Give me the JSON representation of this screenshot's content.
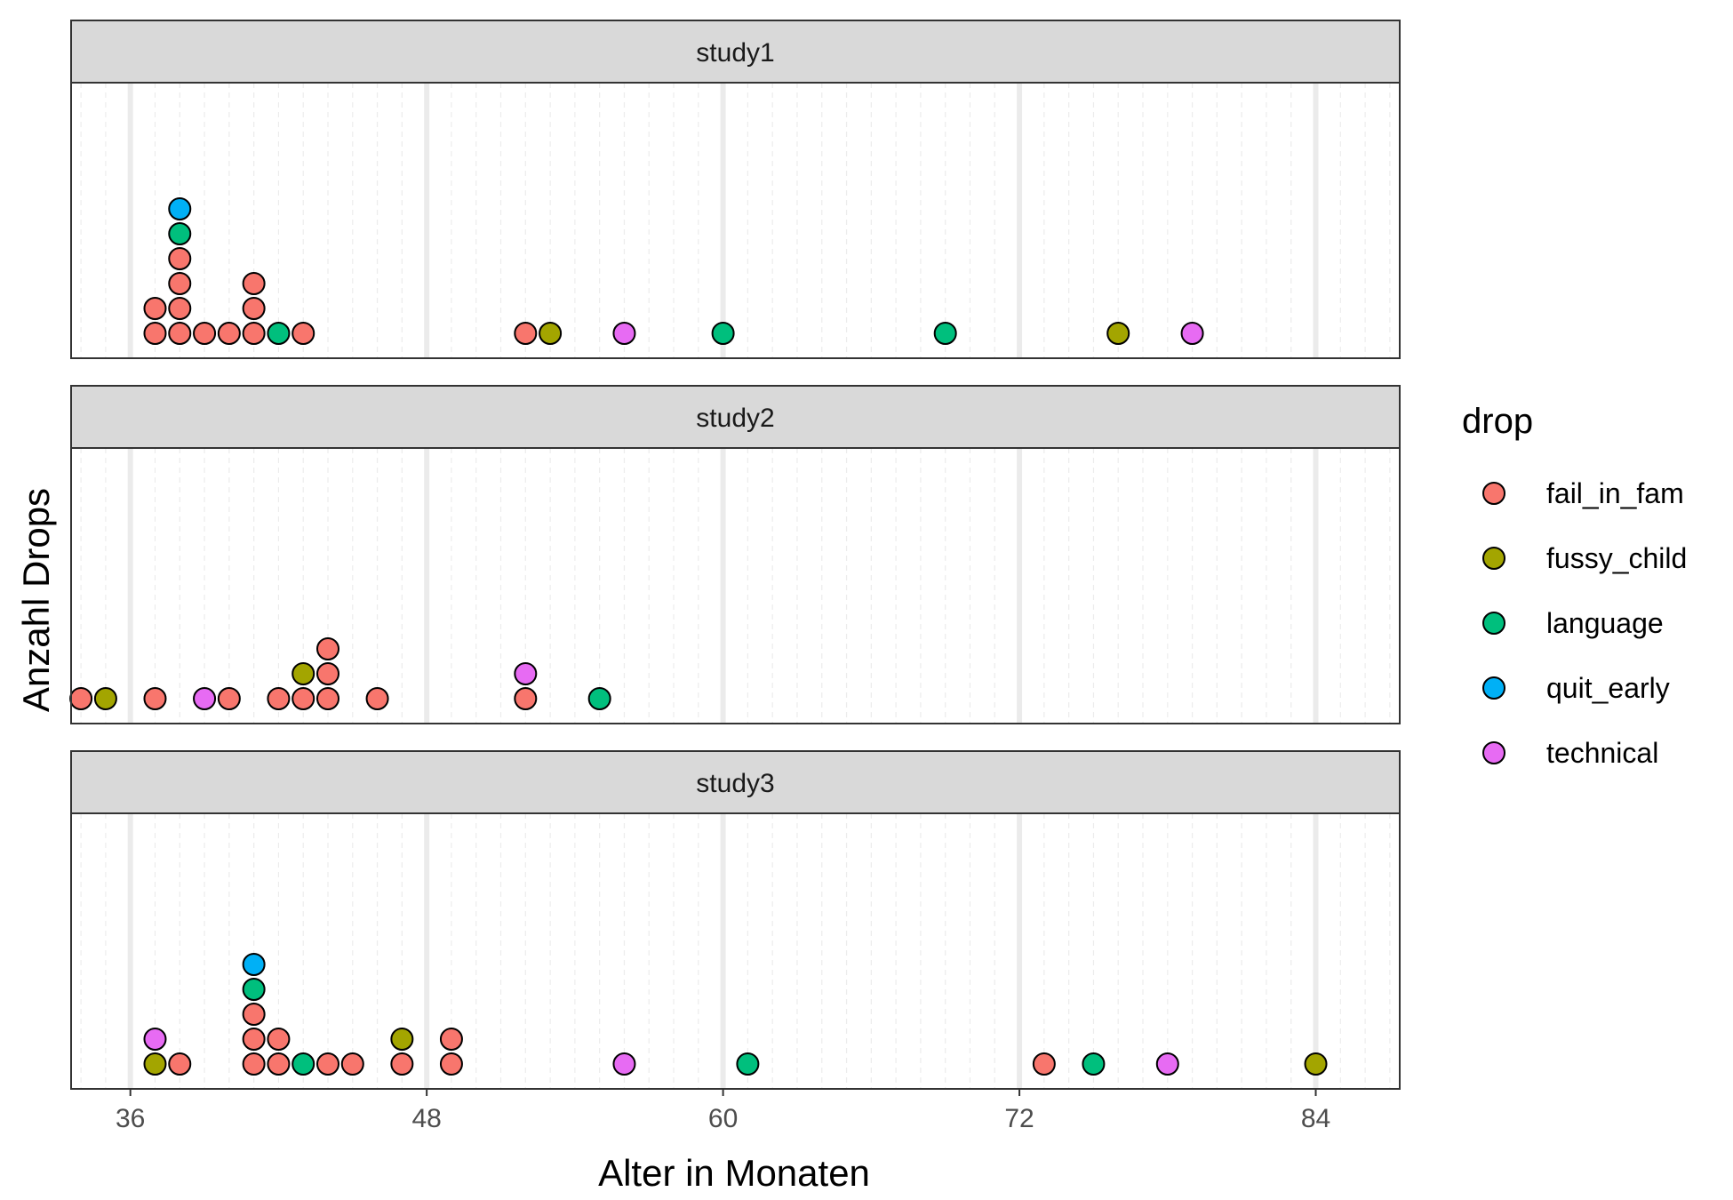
{
  "chart_data": {
    "type": "scatter",
    "subtype": "dotplot",
    "xlabel": "Alter in Monaten",
    "ylabel": "Anzahl Drops",
    "xticks": [
      36,
      48,
      60,
      72,
      84
    ],
    "xlim": [
      33.6,
      87.4
    ],
    "grid": true,
    "legend": {
      "title": "drop",
      "placement": "right"
    },
    "series": [
      {
        "name": "fail_in_fam",
        "color": "#F8766D"
      },
      {
        "name": "fussy_child",
        "color": "#A3A500"
      },
      {
        "name": "language",
        "color": "#00BF7D"
      },
      {
        "name": "quit_early",
        "color": "#00B0F6"
      },
      {
        "name": "technical",
        "color": "#E76BF3"
      }
    ],
    "panels": [
      {
        "label": "study1",
        "stacks": [
          {
            "x": 37.0,
            "drops": [
              "fail_in_fam",
              "fail_in_fam"
            ]
          },
          {
            "x": 38.0,
            "drops": [
              "fail_in_fam",
              "fail_in_fam",
              "fail_in_fam",
              "fail_in_fam",
              "language",
              "quit_early"
            ]
          },
          {
            "x": 39.0,
            "drops": [
              "fail_in_fam"
            ]
          },
          {
            "x": 40.0,
            "drops": [
              "fail_in_fam"
            ]
          },
          {
            "x": 41.0,
            "drops": [
              "fail_in_fam",
              "fail_in_fam",
              "fail_in_fam"
            ]
          },
          {
            "x": 42.0,
            "drops": [
              "language"
            ]
          },
          {
            "x": 43.0,
            "drops": [
              "fail_in_fam"
            ]
          },
          {
            "x": 52.0,
            "drops": [
              "fail_in_fam"
            ]
          },
          {
            "x": 53.0,
            "drops": [
              "fussy_child"
            ]
          },
          {
            "x": 56.0,
            "drops": [
              "technical"
            ]
          },
          {
            "x": 60.0,
            "drops": [
              "language"
            ]
          },
          {
            "x": 69.0,
            "drops": [
              "language"
            ]
          },
          {
            "x": 76.0,
            "drops": [
              "fussy_child"
            ]
          },
          {
            "x": 79.0,
            "drops": [
              "technical"
            ]
          }
        ]
      },
      {
        "label": "study2",
        "stacks": [
          {
            "x": 34.0,
            "drops": [
              "fail_in_fam"
            ]
          },
          {
            "x": 35.0,
            "drops": [
              "fussy_child"
            ]
          },
          {
            "x": 37.0,
            "drops": [
              "fail_in_fam"
            ]
          },
          {
            "x": 39.0,
            "drops": [
              "technical"
            ]
          },
          {
            "x": 40.0,
            "drops": [
              "fail_in_fam"
            ]
          },
          {
            "x": 42.0,
            "drops": [
              "fail_in_fam"
            ]
          },
          {
            "x": 43.0,
            "drops": [
              "fail_in_fam",
              "fussy_child"
            ]
          },
          {
            "x": 44.0,
            "drops": [
              "fail_in_fam",
              "fail_in_fam",
              "fail_in_fam"
            ]
          },
          {
            "x": 46.0,
            "drops": [
              "fail_in_fam"
            ]
          },
          {
            "x": 52.0,
            "drops": [
              "fail_in_fam",
              "technical"
            ]
          },
          {
            "x": 55.0,
            "drops": [
              "language"
            ]
          }
        ]
      },
      {
        "label": "study3",
        "stacks": [
          {
            "x": 37.0,
            "drops": [
              "fussy_child",
              "technical"
            ]
          },
          {
            "x": 38.0,
            "drops": [
              "fail_in_fam"
            ]
          },
          {
            "x": 41.0,
            "drops": [
              "fail_in_fam",
              "fail_in_fam",
              "fail_in_fam",
              "language",
              "quit_early"
            ]
          },
          {
            "x": 42.0,
            "drops": [
              "fail_in_fam",
              "fail_in_fam"
            ]
          },
          {
            "x": 43.0,
            "drops": [
              "language"
            ]
          },
          {
            "x": 44.0,
            "drops": [
              "fail_in_fam"
            ]
          },
          {
            "x": 45.0,
            "drops": [
              "fail_in_fam"
            ]
          },
          {
            "x": 47.0,
            "drops": [
              "fail_in_fam",
              "fussy_child"
            ]
          },
          {
            "x": 49.0,
            "drops": [
              "fail_in_fam",
              "fail_in_fam"
            ]
          },
          {
            "x": 56.0,
            "drops": [
              "technical"
            ]
          },
          {
            "x": 61.0,
            "drops": [
              "language"
            ]
          },
          {
            "x": 73.0,
            "drops": [
              "fail_in_fam"
            ]
          },
          {
            "x": 75.0,
            "drops": [
              "language"
            ]
          },
          {
            "x": 78.0,
            "drops": [
              "technical"
            ]
          },
          {
            "x": 84.0,
            "drops": [
              "fussy_child"
            ]
          }
        ]
      }
    ]
  }
}
